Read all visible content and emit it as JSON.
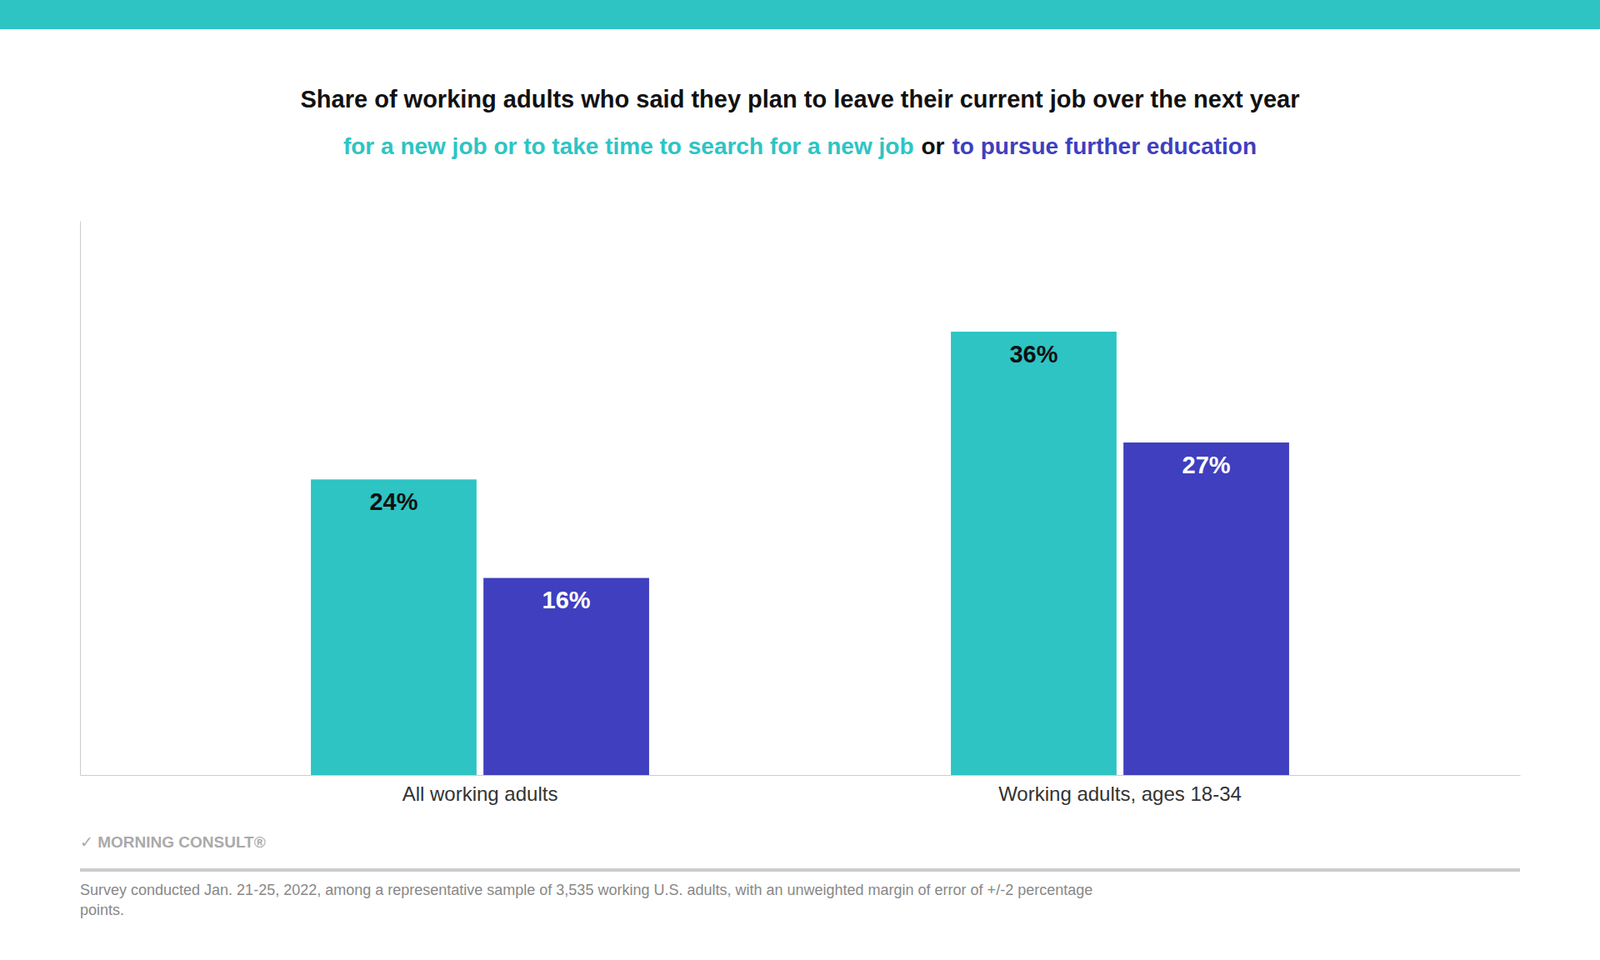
{
  "chart_data": {
    "type": "bar",
    "title": "Share of working adults who said they plan to leave their current job over the next year",
    "categories": [
      "All working adults",
      "Working adults, ages 18-34"
    ],
    "series": [
      {
        "name": "for a new job or to take time to search for a new job",
        "color": "#2EC4C4",
        "values": [
          24,
          36
        ],
        "value_labels": [
          "24%",
          "36%"
        ]
      },
      {
        "name": "to pursue further education",
        "color": "#3F3FBF",
        "values": [
          16,
          27
        ],
        "value_labels": [
          "16%",
          "27%"
        ]
      }
    ],
    "annotations": [
      "or",
      "✓ MORNING CONSULT®",
      "Survey conducted Jan. 21-25, 2022, among a representative sample of 3,535 working U.S. adults, with an unweighted margin of error of +/-2 percentage\npoints."
    ],
    "ylim": [
      0,
      45
    ],
    "grid": false,
    "data_labels": true,
    "tick_labels": "x"
  }
}
